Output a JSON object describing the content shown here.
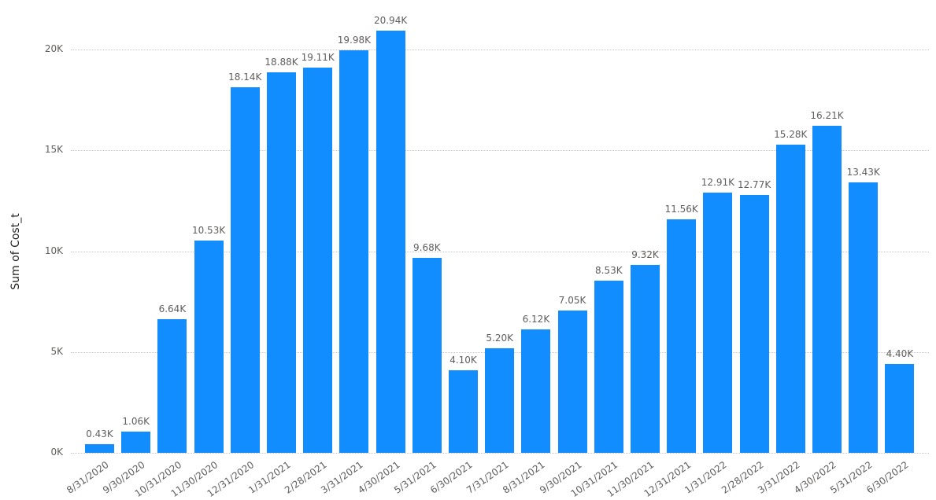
{
  "chart_data": {
    "type": "bar",
    "title": "",
    "xlabel": "",
    "ylabel": "Sum of Cost_t",
    "ylim": [
      0,
      20940
    ],
    "yticks": [
      "0K",
      "5K",
      "10K",
      "15K",
      "20K"
    ],
    "ytick_values": [
      0,
      5000,
      10000,
      15000,
      20000
    ],
    "grid": true,
    "legend": null,
    "bar_color": "#118dff",
    "categories": [
      "8/31/2020",
      "9/30/2020",
      "10/31/2020",
      "11/30/2020",
      "12/31/2020",
      "1/31/2021",
      "2/28/2021",
      "3/31/2021",
      "4/30/2021",
      "5/31/2021",
      "6/30/2021",
      "7/31/2021",
      "8/31/2021",
      "9/30/2021",
      "10/31/2021",
      "11/30/2021",
      "12/31/2021",
      "1/31/2022",
      "2/28/2022",
      "3/31/2022",
      "4/30/2022",
      "5/31/2022",
      "6/30/2022"
    ],
    "values": [
      430,
      1060,
      6640,
      10530,
      18140,
      18880,
      19110,
      19980,
      20940,
      9680,
      4100,
      5200,
      6120,
      7050,
      8530,
      9320,
      11560,
      12910,
      12770,
      15280,
      16210,
      13430,
      4400
    ],
    "data_labels": [
      "0.43K",
      "1.06K",
      "6.64K",
      "10.53K",
      "18.14K",
      "18.88K",
      "19.11K",
      "19.98K",
      "20.94K",
      "9.68K",
      "4.10K",
      "5.20K",
      "6.12K",
      "7.05K",
      "8.53K",
      "9.32K",
      "11.56K",
      "12.91K",
      "12.77K",
      "15.28K",
      "16.21K",
      "13.43K",
      "4.40K"
    ]
  }
}
